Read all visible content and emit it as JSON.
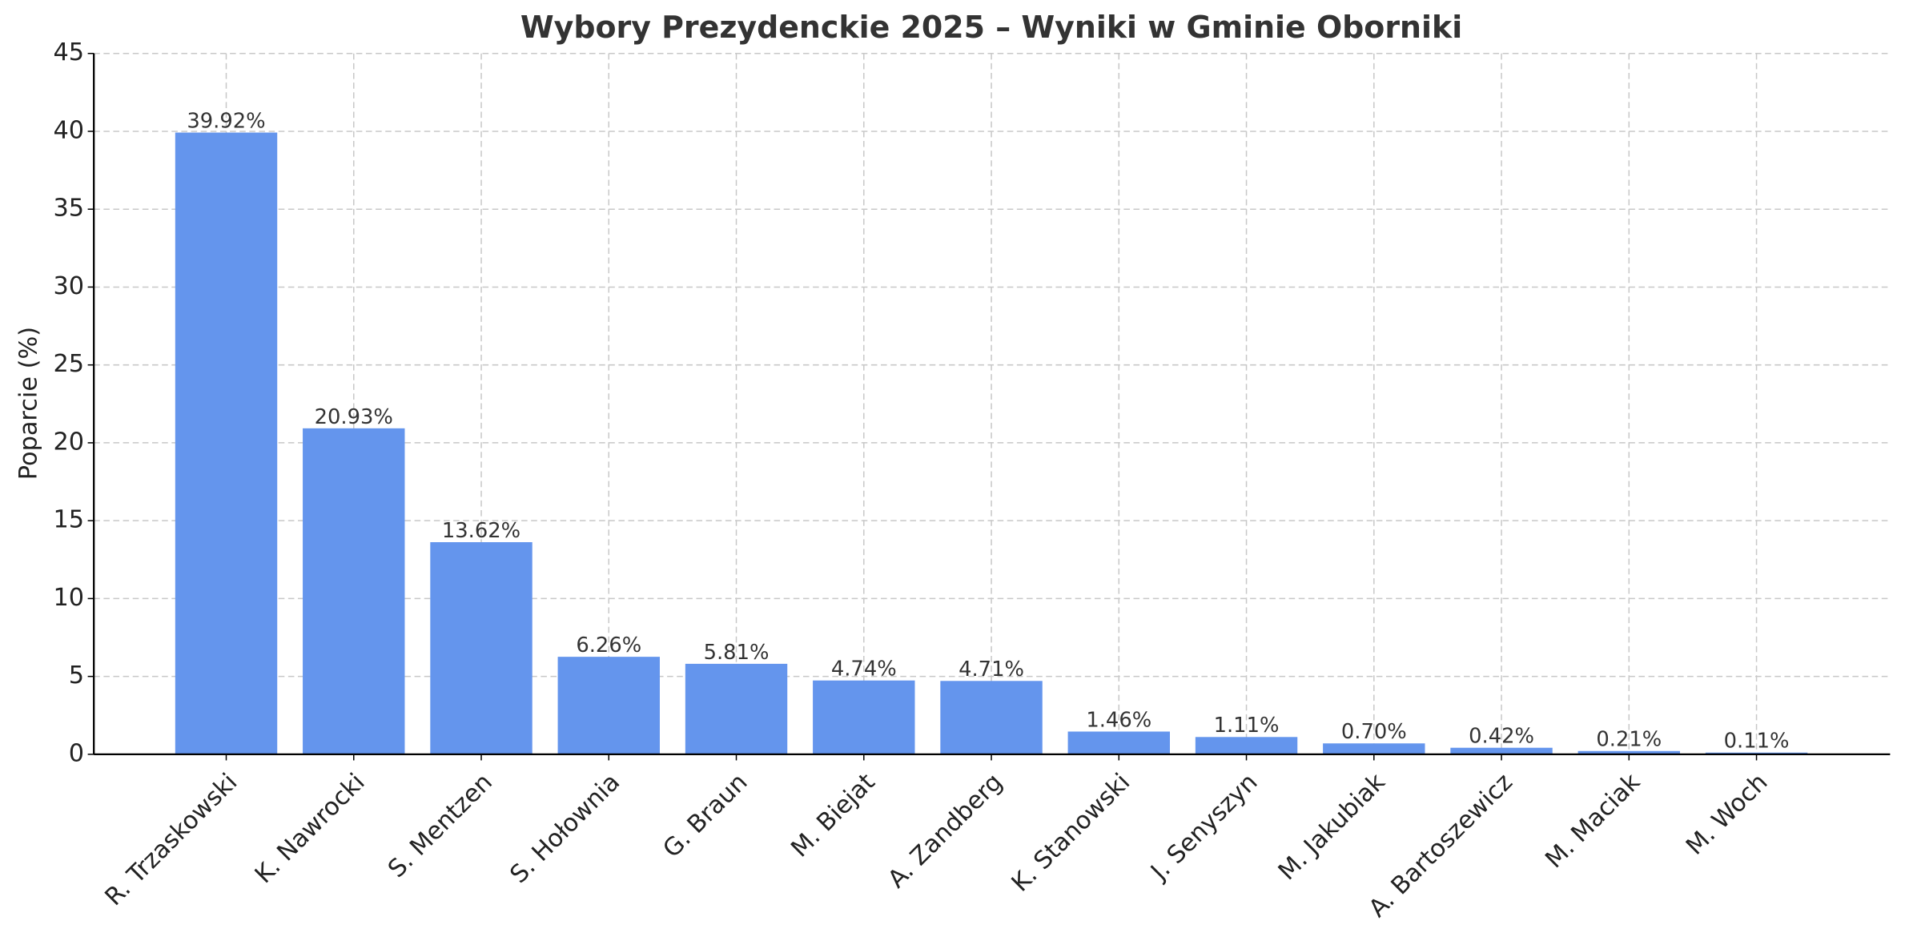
{
  "chart_data": {
    "type": "bar",
    "title": "Wybory Prezydenckie 2025 – Wyniki w Gminie Oborniki",
    "y_label": "Poparcie (%)",
    "categories": [
      "R. Trzaskowski",
      "K. Nawrocki",
      "S. Mentzen",
      "S. Hołownia",
      "G. Braun",
      "M. Biejat",
      "A. Zandberg",
      "K. Stanowski",
      "J. Senyszyn",
      "M. Jakubiak",
      "A. Bartoszewicz",
      "M. Maciak",
      "M. Woch"
    ],
    "values": [
      39.92,
      20.93,
      13.62,
      6.26,
      5.81,
      4.74,
      4.71,
      1.46,
      1.11,
      0.7,
      0.42,
      0.21,
      0.11
    ],
    "value_labels": [
      "39.92%",
      "20.93%",
      "13.62%",
      "6.26%",
      "5.81%",
      "4.74%",
      "4.71%",
      "1.46%",
      "1.11%",
      "0.70%",
      "0.42%",
      "0.21%",
      "0.11%"
    ],
    "color": "#6495ed",
    "ylim": [
      0,
      45
    ],
    "yticks": [
      0,
      5,
      10,
      15,
      20,
      25,
      30,
      35,
      40,
      45
    ],
    "grid": true
  }
}
